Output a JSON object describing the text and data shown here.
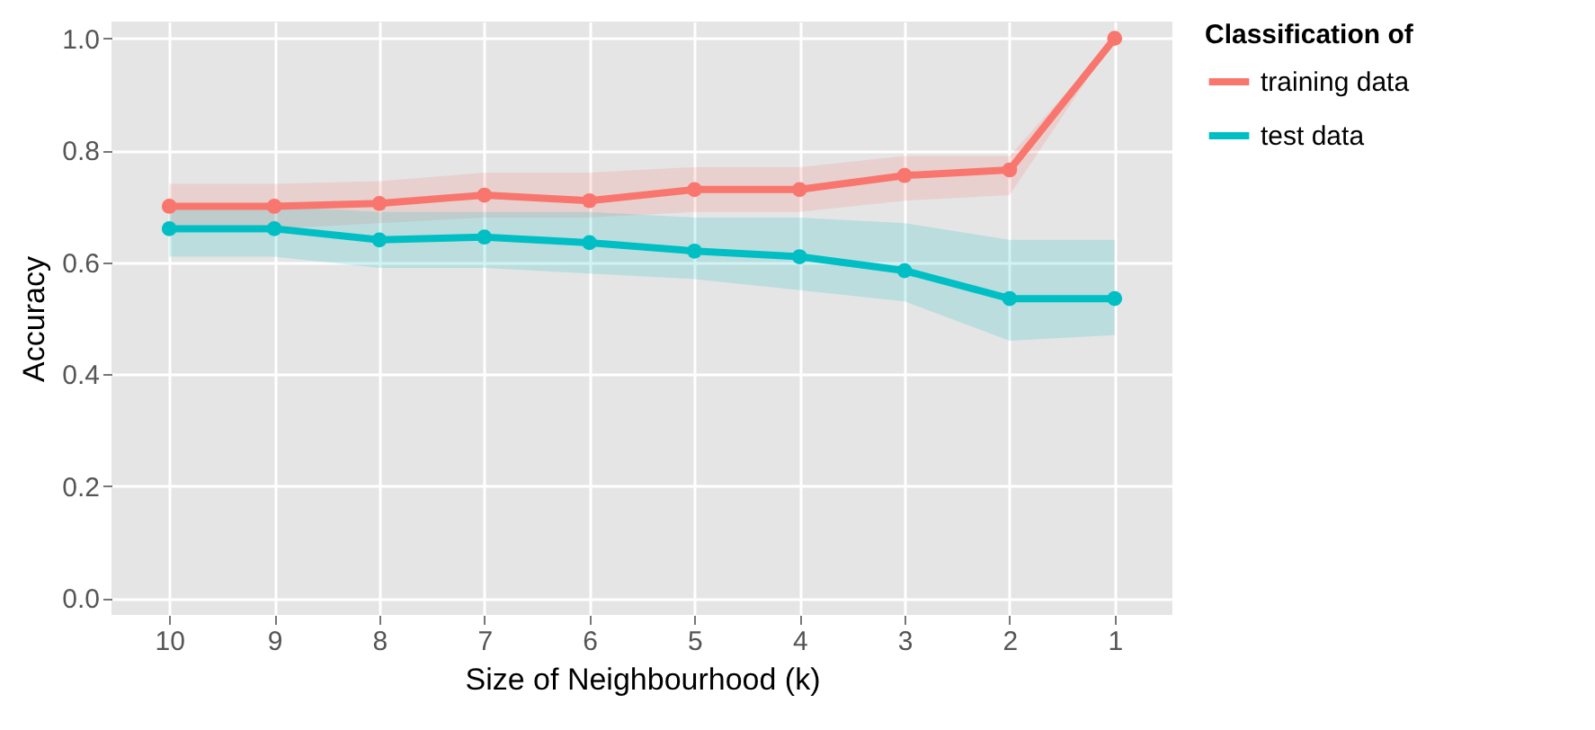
{
  "chart_data": {
    "type": "line",
    "xlabel": "Size of Neighbourhood (k)",
    "ylabel": "Accuracy",
    "legend_title": "Classification of",
    "categories": [
      "10",
      "9",
      "8",
      "7",
      "6",
      "5",
      "4",
      "3",
      "2",
      "1"
    ],
    "series": [
      {
        "name": "training data",
        "color": "#f8766d",
        "values": [
          0.7,
          0.7,
          0.705,
          0.72,
          0.71,
          0.73,
          0.73,
          0.755,
          0.765,
          1.0
        ],
        "lower": [
          0.66,
          0.66,
          0.67,
          0.68,
          0.68,
          0.69,
          0.69,
          0.71,
          0.72,
          1.0
        ],
        "upper": [
          0.74,
          0.74,
          0.745,
          0.76,
          0.76,
          0.77,
          0.77,
          0.79,
          0.79,
          1.0
        ]
      },
      {
        "name": "test data",
        "color": "#00bfc4",
        "values": [
          0.66,
          0.66,
          0.64,
          0.645,
          0.635,
          0.62,
          0.61,
          0.585,
          0.535,
          0.535
        ],
        "lower": [
          0.61,
          0.61,
          0.59,
          0.59,
          0.58,
          0.57,
          0.55,
          0.53,
          0.46,
          0.47
        ],
        "upper": [
          0.7,
          0.7,
          0.69,
          0.69,
          0.69,
          0.68,
          0.68,
          0.67,
          0.64,
          0.64
        ]
      }
    ],
    "ylim": [
      -0.03,
      1.03
    ],
    "yticks": [
      {
        "value": 0,
        "label": "0.0"
      },
      {
        "value": 0.2,
        "label": "0.2"
      },
      {
        "value": 0.4,
        "label": "0.4"
      },
      {
        "value": 0.6,
        "label": "0.6"
      },
      {
        "value": 0.8,
        "label": "0.8"
      },
      {
        "value": 1,
        "label": "1.0"
      }
    ],
    "grid": true,
    "legend": "right",
    "marker": "circle",
    "line_style": "solid"
  }
}
